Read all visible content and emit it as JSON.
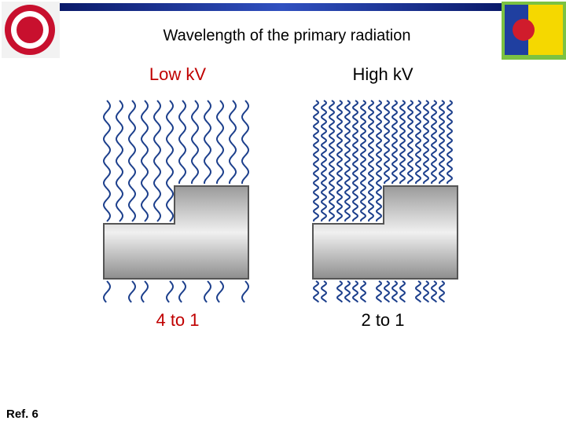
{
  "title": "Wavelength of the primary radiation",
  "panels": [
    {
      "label": "Low kV",
      "ratio": "4 to 1"
    },
    {
      "label": "High kV",
      "ratio": "2 to 1"
    }
  ],
  "footer": "Ref. 6"
}
